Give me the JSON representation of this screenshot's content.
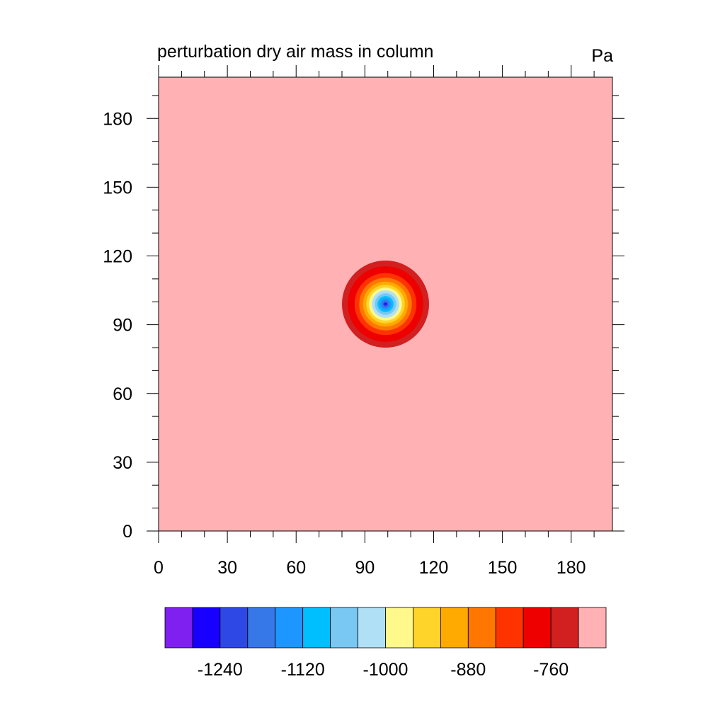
{
  "chart_data": {
    "type": "heatmap",
    "title": "perturbation dry air mass in column",
    "units": "Pa",
    "xlim": [
      0,
      198
    ],
    "ylim": [
      0,
      198
    ],
    "x_ticks": [
      0,
      30,
      60,
      90,
      120,
      150,
      180
    ],
    "y_ticks": [
      0,
      30,
      60,
      90,
      120,
      150,
      180
    ],
    "x_minor_step": 10,
    "y_minor_step": 10,
    "background_level_color": "#ffb1b3",
    "field": {
      "shape": "circular",
      "center": [
        99,
        99
      ],
      "outer_radius": 19,
      "rings": [
        {
          "radius": 19,
          "color": "#d21f20"
        },
        {
          "radius": 16.5,
          "color": "#ee0000"
        },
        {
          "radius": 13.5,
          "color": "#ff3300"
        },
        {
          "radius": 11.5,
          "color": "#ff7700"
        },
        {
          "radius": 9.8,
          "color": "#ffaa00"
        },
        {
          "radius": 8.4,
          "color": "#ffd42a"
        },
        {
          "radius": 7.2,
          "color": "#fff88b"
        },
        {
          "radius": 6.0,
          "color": "#b0e0f6"
        },
        {
          "radius": 4.7,
          "color": "#79c8f3"
        },
        {
          "radius": 3.5,
          "color": "#00bfff"
        },
        {
          "radius": 2.5,
          "color": "#1e96ff"
        },
        {
          "radius": 1.7,
          "color": "#3778e8"
        },
        {
          "radius": 1.0,
          "color": "#2e48e6"
        },
        {
          "radius": 0.5,
          "color": "#1800ff"
        },
        {
          "radius": 0.25,
          "color": "#8020f0"
        }
      ]
    },
    "colorbar": {
      "colors": [
        "#8020f0",
        "#1800ff",
        "#2e48e6",
        "#3778e8",
        "#1e96ff",
        "#00bfff",
        "#79c8f3",
        "#b0e0f6",
        "#fff88b",
        "#ffd42a",
        "#ffaa00",
        "#ff7700",
        "#ff3300",
        "#ee0000",
        "#d21f20",
        "#ffb1b3"
      ],
      "labels": [
        {
          "boundary": 2,
          "text": "-1240"
        },
        {
          "boundary": 5,
          "text": "-1120"
        },
        {
          "boundary": 8,
          "text": "-1000"
        },
        {
          "boundary": 11,
          "text": "-880"
        },
        {
          "boundary": 14,
          "text": "-760"
        }
      ]
    }
  }
}
